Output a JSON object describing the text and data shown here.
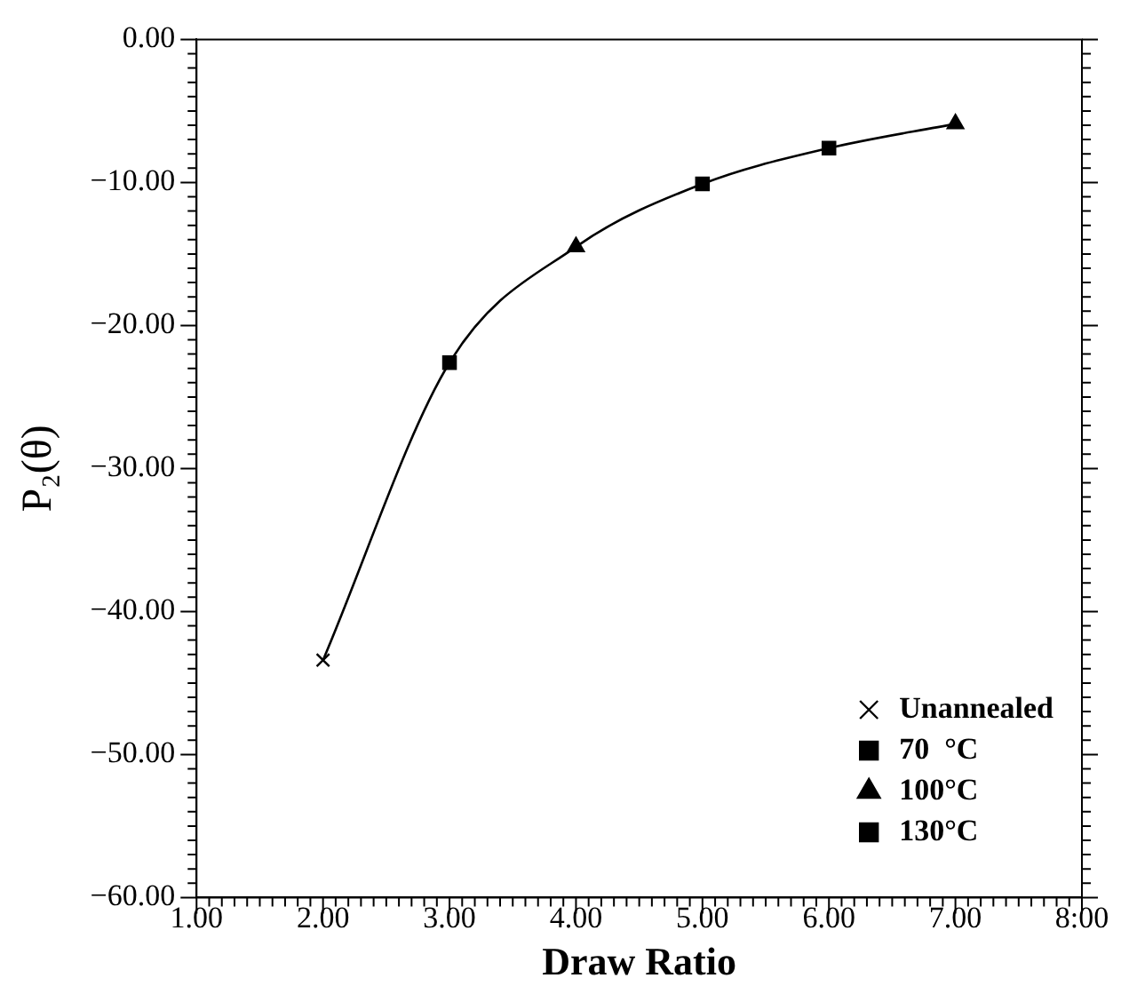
{
  "chart_data": {
    "type": "scatter",
    "xlabel": "Draw Ratio",
    "ylabel": "P₂(θ)",
    "x": [
      2,
      3,
      4,
      5,
      6,
      7
    ],
    "series": [
      {
        "name": "Unannealed",
        "type": "scatter",
        "marker": "cross",
        "color": "#000000",
        "x": [
          2
        ],
        "values": [
          -43.4
        ]
      },
      {
        "name": "70  °C",
        "type": "scatter",
        "marker": "square",
        "color": "#000000",
        "x": [
          5,
          6
        ],
        "values": [
          -10.1,
          -7.6
        ]
      },
      {
        "name": "100°C",
        "type": "scatter",
        "marker": "triangle",
        "color": "#000000",
        "x": [
          4,
          7
        ],
        "values": [
          -14.5,
          -5.9
        ]
      },
      {
        "name": "130°C",
        "type": "scatter",
        "marker": "square",
        "color": "#000000",
        "x": [
          3
        ],
        "values": [
          -22.6
        ]
      },
      {
        "type": "line",
        "marker": "none",
        "line_style": "solid",
        "color": "#000000",
        "values": [
          -43.4,
          -22.6,
          -14.5,
          -10.1,
          -7.6,
          -5.9
        ]
      }
    ],
    "xlim": [
      1,
      8
    ],
    "xticks": [
      {
        "value": 1,
        "label": "1.00"
      },
      {
        "value": 1.1,
        "label": null
      },
      {
        "value": 1.2,
        "label": null
      },
      {
        "value": 1.3,
        "label": null
      },
      {
        "value": 1.4,
        "label": null
      },
      {
        "value": 1.5,
        "label": null
      },
      {
        "value": 1.6,
        "label": null
      },
      {
        "value": 1.7,
        "label": null
      },
      {
        "value": 1.8,
        "label": null
      },
      {
        "value": 1.9,
        "label": null
      },
      {
        "value": 2,
        "label": "2.00"
      },
      {
        "value": 2.1,
        "label": null
      },
      {
        "value": 2.2,
        "label": null
      },
      {
        "value": 2.3,
        "label": null
      },
      {
        "value": 2.4,
        "label": null
      },
      {
        "value": 2.5,
        "label": null
      },
      {
        "value": 2.6,
        "label": null
      },
      {
        "value": 2.7,
        "label": null
      },
      {
        "value": 2.8,
        "label": null
      },
      {
        "value": 2.9,
        "label": null
      },
      {
        "value": 3,
        "label": "3.00"
      },
      {
        "value": 3.1,
        "label": null
      },
      {
        "value": 3.2,
        "label": null
      },
      {
        "value": 3.3,
        "label": null
      },
      {
        "value": 3.4,
        "label": null
      },
      {
        "value": 3.5,
        "label": null
      },
      {
        "value": 3.6,
        "label": null
      },
      {
        "value": 3.7,
        "label": null
      },
      {
        "value": 3.8,
        "label": null
      },
      {
        "value": 3.9,
        "label": null
      },
      {
        "value": 4,
        "label": "4.00"
      },
      {
        "value": 4.1,
        "label": null
      },
      {
        "value": 4.2,
        "label": null
      },
      {
        "value": 4.3,
        "label": null
      },
      {
        "value": 4.4,
        "label": null
      },
      {
        "value": 4.5,
        "label": null
      },
      {
        "value": 4.6,
        "label": null
      },
      {
        "value": 4.7,
        "label": null
      },
      {
        "value": 4.8,
        "label": null
      },
      {
        "value": 4.9,
        "label": null
      },
      {
        "value": 5,
        "label": "5.00"
      },
      {
        "value": 5.1,
        "label": null
      },
      {
        "value": 5.2,
        "label": null
      },
      {
        "value": 5.3,
        "label": null
      },
      {
        "value": 5.4,
        "label": null
      },
      {
        "value": 5.5,
        "label": null
      },
      {
        "value": 5.6,
        "label": null
      },
      {
        "value": 5.7,
        "label": null
      },
      {
        "value": 5.8,
        "label": null
      },
      {
        "value": 5.9,
        "label": null
      },
      {
        "value": 6,
        "label": "6.00"
      },
      {
        "value": 6.1,
        "label": null
      },
      {
        "value": 6.2,
        "label": null
      },
      {
        "value": 6.3,
        "label": null
      },
      {
        "value": 6.4,
        "label": null
      },
      {
        "value": 6.5,
        "label": null
      },
      {
        "value": 6.6,
        "label": null
      },
      {
        "value": 6.7,
        "label": null
      },
      {
        "value": 6.8,
        "label": null
      },
      {
        "value": 6.9,
        "label": null
      },
      {
        "value": 7,
        "label": "7.00"
      },
      {
        "value": 7.1,
        "label": null
      },
      {
        "value": 7.2,
        "label": null
      },
      {
        "value": 7.3,
        "label": null
      },
      {
        "value": 7.4,
        "label": null
      },
      {
        "value": 7.5,
        "label": null
      },
      {
        "value": 7.6,
        "label": null
      },
      {
        "value": 7.7,
        "label": null
      },
      {
        "value": 7.8,
        "label": null
      },
      {
        "value": 7.9,
        "label": null
      },
      {
        "value": 8,
        "label": "8:00"
      }
    ],
    "ylim": [
      -60,
      0
    ],
    "yticks": [
      {
        "value": -60,
        "label": "−60.00"
      },
      {
        "value": -59,
        "label": null
      },
      {
        "value": -58,
        "label": null
      },
      {
        "value": -57,
        "label": null
      },
      {
        "value": -56,
        "label": null
      },
      {
        "value": -55,
        "label": null
      },
      {
        "value": -54,
        "label": null
      },
      {
        "value": -53,
        "label": null
      },
      {
        "value": -52,
        "label": null
      },
      {
        "value": -51,
        "label": null
      },
      {
        "value": -50,
        "label": "−50.00"
      },
      {
        "value": -49,
        "label": null
      },
      {
        "value": -48,
        "label": null
      },
      {
        "value": -47,
        "label": null
      },
      {
        "value": -46,
        "label": null
      },
      {
        "value": -45,
        "label": null
      },
      {
        "value": -44,
        "label": null
      },
      {
        "value": -43,
        "label": null
      },
      {
        "value": -42,
        "label": null
      },
      {
        "value": -41,
        "label": null
      },
      {
        "value": -40,
        "label": "−40.00"
      },
      {
        "value": -39,
        "label": null
      },
      {
        "value": -38,
        "label": null
      },
      {
        "value": -37,
        "label": null
      },
      {
        "value": -36,
        "label": null
      },
      {
        "value": -35,
        "label": null
      },
      {
        "value": -34,
        "label": null
      },
      {
        "value": -33,
        "label": null
      },
      {
        "value": -32,
        "label": null
      },
      {
        "value": -31,
        "label": null
      },
      {
        "value": -30,
        "label": "−30.00"
      },
      {
        "value": -29,
        "label": null
      },
      {
        "value": -28,
        "label": null
      },
      {
        "value": -27,
        "label": null
      },
      {
        "value": -26,
        "label": null
      },
      {
        "value": -25,
        "label": null
      },
      {
        "value": -24,
        "label": null
      },
      {
        "value": -23,
        "label": null
      },
      {
        "value": -22,
        "label": null
      },
      {
        "value": -21,
        "label": null
      },
      {
        "value": -20,
        "label": "−20.00"
      },
      {
        "value": -19,
        "label": null
      },
      {
        "value": -18,
        "label": null
      },
      {
        "value": -17,
        "label": null
      },
      {
        "value": -16,
        "label": null
      },
      {
        "value": -15,
        "label": null
      },
      {
        "value": -14,
        "label": null
      },
      {
        "value": -13,
        "label": null
      },
      {
        "value": -12,
        "label": null
      },
      {
        "value": -11,
        "label": null
      },
      {
        "value": -10,
        "label": "−10.00"
      },
      {
        "value": -9,
        "label": null
      },
      {
        "value": -8,
        "label": null
      },
      {
        "value": -7,
        "label": null
      },
      {
        "value": -6,
        "label": null
      },
      {
        "value": -5,
        "label": null
      },
      {
        "value": -4,
        "label": null
      },
      {
        "value": -3,
        "label": null
      },
      {
        "value": -2,
        "label": null
      },
      {
        "value": -1,
        "label": null
      },
      {
        "value": 0,
        "label": "0.00"
      }
    ],
    "grid": false,
    "legend": "bottom right"
  }
}
